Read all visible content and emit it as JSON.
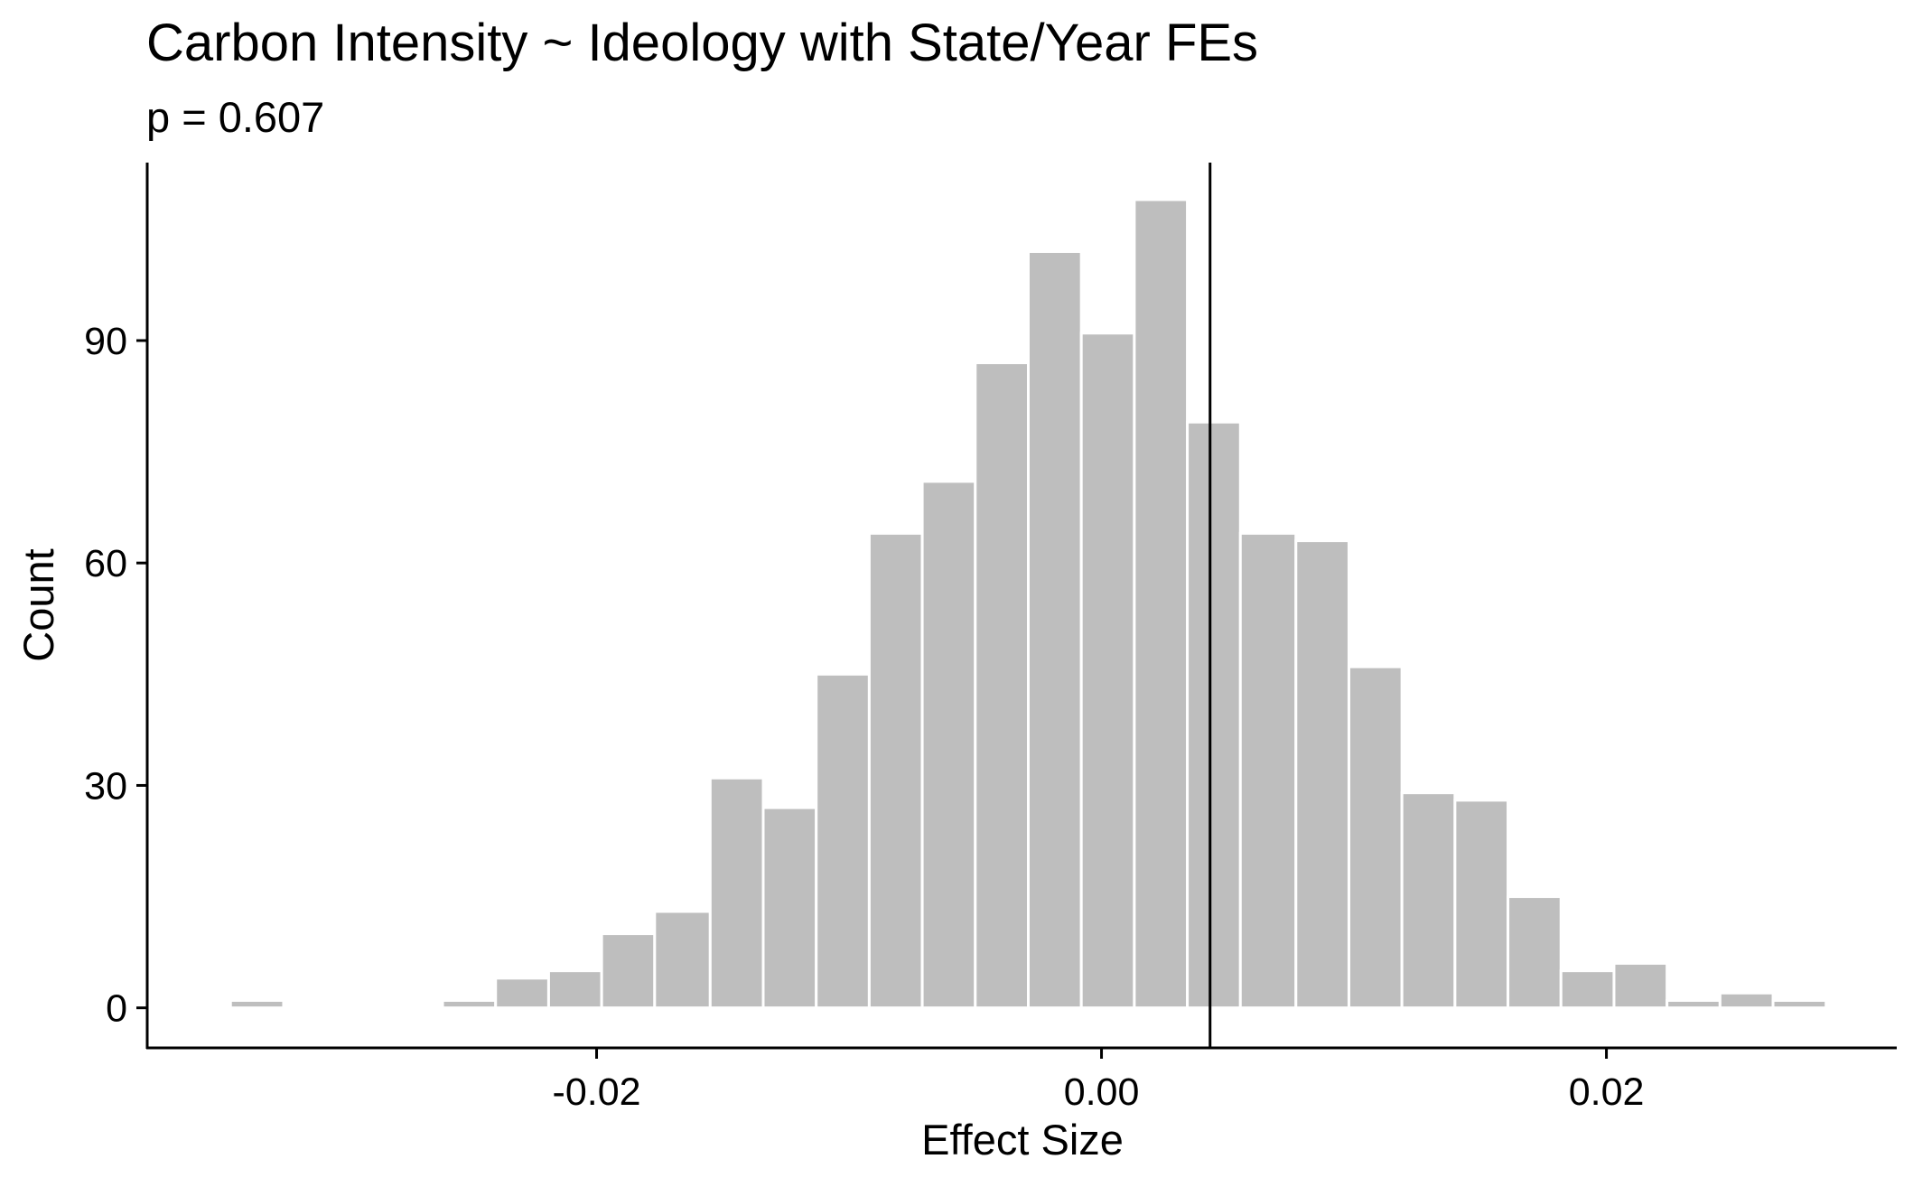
{
  "chart_data": {
    "type": "histogram",
    "title": "Carbon Intensity ~ Ideology with State/Year FEs",
    "subtitle": "p = 0.607",
    "xlabel": "Effect Size",
    "ylabel": "Count",
    "xlim": [
      -0.0378,
      0.0315
    ],
    "ylim": [
      -5.4,
      114
    ],
    "bin_width": 0.00211,
    "bins": [
      {
        "x_left": -0.0345,
        "x_right": -0.0324,
        "count": 1
      },
      {
        "x_left": -0.0261,
        "x_right": -0.024,
        "count": 1
      },
      {
        "x_left": -0.024,
        "x_right": -0.0219,
        "count": 4
      },
      {
        "x_left": -0.0219,
        "x_right": -0.0198,
        "count": 5
      },
      {
        "x_left": -0.0198,
        "x_right": -0.0177,
        "count": 10
      },
      {
        "x_left": -0.0177,
        "x_right": -0.0155,
        "count": 13
      },
      {
        "x_left": -0.0155,
        "x_right": -0.0134,
        "count": 31
      },
      {
        "x_left": -0.0134,
        "x_right": -0.0113,
        "count": 27
      },
      {
        "x_left": -0.0113,
        "x_right": -0.0092,
        "count": 45
      },
      {
        "x_left": -0.0092,
        "x_right": -0.0071,
        "count": 64
      },
      {
        "x_left": -0.0071,
        "x_right": -0.005,
        "count": 71
      },
      {
        "x_left": -0.005,
        "x_right": -0.0029,
        "count": 87
      },
      {
        "x_left": -0.0029,
        "x_right": -0.0008,
        "count": 102
      },
      {
        "x_left": -0.0008,
        "x_right": 0.0013,
        "count": 91
      },
      {
        "x_left": 0.0013,
        "x_right": 0.0034,
        "count": 109
      },
      {
        "x_left": 0.0034,
        "x_right": 0.0055,
        "count": 79
      },
      {
        "x_left": 0.0055,
        "x_right": 0.0077,
        "count": 64
      },
      {
        "x_left": 0.0077,
        "x_right": 0.0098,
        "count": 63
      },
      {
        "x_left": 0.0098,
        "x_right": 0.0119,
        "count": 46
      },
      {
        "x_left": 0.0119,
        "x_right": 0.014,
        "count": 29
      },
      {
        "x_left": 0.014,
        "x_right": 0.0161,
        "count": 28
      },
      {
        "x_left": 0.0161,
        "x_right": 0.0182,
        "count": 15
      },
      {
        "x_left": 0.0182,
        "x_right": 0.0203,
        "count": 5
      },
      {
        "x_left": 0.0203,
        "x_right": 0.0224,
        "count": 6
      },
      {
        "x_left": 0.0224,
        "x_right": 0.0245,
        "count": 1
      },
      {
        "x_left": 0.0245,
        "x_right": 0.0266,
        "count": 2
      },
      {
        "x_left": 0.0266,
        "x_right": 0.0287,
        "count": 1
      }
    ],
    "vline_x": 0.0043,
    "x_ticks": [
      {
        "value": -0.02,
        "label": "-0.02"
      },
      {
        "value": 0.0,
        "label": "0.00"
      },
      {
        "value": 0.02,
        "label": "0.02"
      }
    ],
    "y_ticks": [
      {
        "value": 0,
        "label": "0"
      },
      {
        "value": 30,
        "label": "30"
      },
      {
        "value": 60,
        "label": "60"
      },
      {
        "value": 90,
        "label": "90"
      }
    ],
    "bar_color": "#bebebe",
    "bar_outline_color": "#ffffff",
    "vline_color": "#000000",
    "grid": false,
    "legend": "none"
  }
}
